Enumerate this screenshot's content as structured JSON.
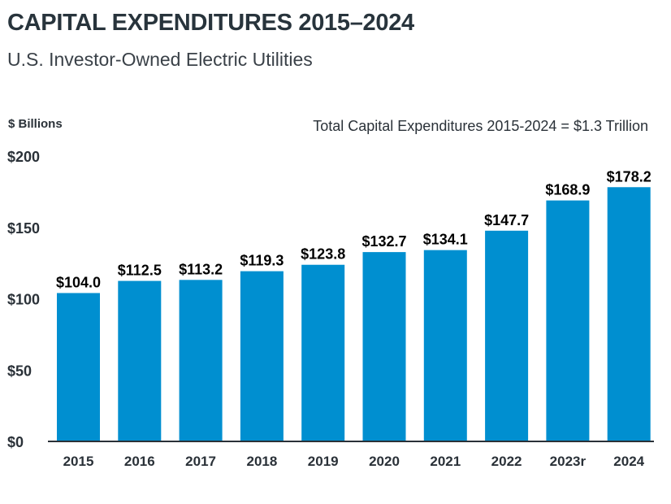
{
  "chart_data": {
    "type": "bar",
    "title": "CAPITAL EXPENDITURES 2015–2024",
    "subtitle": "U.S. Investor-Owned Electric Utilities",
    "ylabel": "$ Billions",
    "annotation": "Total Capital Expenditures 2015-2024 = $1.3 Trillion",
    "categories": [
      "2015",
      "2016",
      "2017",
      "2018",
      "2019",
      "2020",
      "2021",
      "2022",
      "2023r",
      "2024"
    ],
    "values": [
      104.0,
      112.5,
      113.2,
      119.3,
      123.8,
      132.7,
      134.1,
      147.7,
      168.9,
      178.2
    ],
    "data_labels": [
      "$104.0",
      "$112.5",
      "$113.2",
      "$119.3",
      "$123.8",
      "$132.7",
      "$134.1",
      "$147.7",
      "$168.9",
      "$178.2"
    ],
    "yticks": [
      0,
      50,
      100,
      150,
      200
    ],
    "ytick_labels": [
      "$0",
      "$50",
      "$100",
      "$150",
      "$200"
    ],
    "ylim": [
      0,
      200
    ],
    "grid": false,
    "bar_color": "#008fd0"
  }
}
